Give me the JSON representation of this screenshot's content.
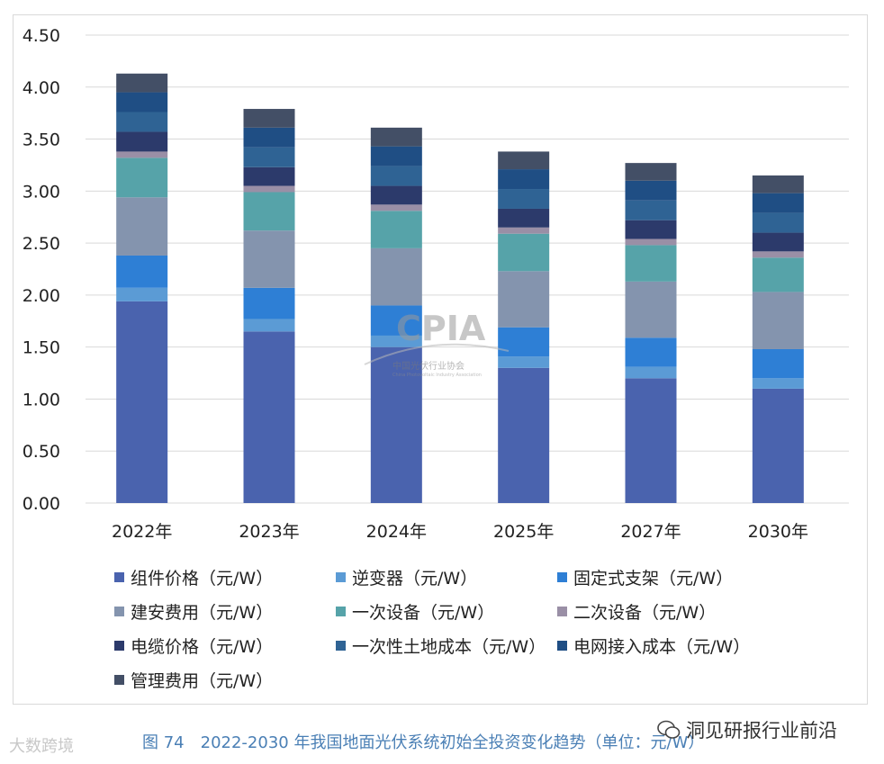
{
  "chart_data": {
    "type": "stacked-bar",
    "categories": [
      "2022年",
      "2023年",
      "2024年",
      "2025年",
      "2027年",
      "2030年"
    ],
    "ylim": [
      0,
      4.5
    ],
    "yticks": [
      "0.00",
      "0.50",
      "1.00",
      "1.50",
      "2.00",
      "2.50",
      "3.00",
      "3.50",
      "4.00",
      "4.50"
    ],
    "grid": true,
    "legend_position": "bottom",
    "series": [
      {
        "name": "组件价格（元/W）",
        "color": "#4A63AE",
        "values": [
          1.94,
          1.65,
          1.5,
          1.3,
          1.2,
          1.1
        ]
      },
      {
        "name": "逆变器（元/W）",
        "color": "#5B9BD5",
        "values": [
          0.13,
          0.12,
          0.11,
          0.11,
          0.11,
          0.1
        ]
      },
      {
        "name": "固定式支架（元/W）",
        "color": "#2E7FD5",
        "values": [
          0.31,
          0.3,
          0.29,
          0.28,
          0.28,
          0.28
        ]
      },
      {
        "name": "建安费用（元/W）",
        "color": "#8494AE",
        "values": [
          0.56,
          0.55,
          0.55,
          0.54,
          0.54,
          0.55
        ]
      },
      {
        "name": "一次设备（元/W）",
        "color": "#56A3A9",
        "values": [
          0.38,
          0.37,
          0.36,
          0.36,
          0.35,
          0.33
        ]
      },
      {
        "name": "二次设备（元/W）",
        "color": "#9A8FA6",
        "values": [
          0.06,
          0.06,
          0.06,
          0.06,
          0.06,
          0.06
        ]
      },
      {
        "name": "电缆价格（元/W）",
        "color": "#2C3A6B",
        "values": [
          0.19,
          0.18,
          0.18,
          0.18,
          0.18,
          0.18
        ]
      },
      {
        "name": "一次性土地成本（元/W）",
        "color": "#2F6394",
        "values": [
          0.19,
          0.19,
          0.19,
          0.19,
          0.19,
          0.19
        ]
      },
      {
        "name": "电网接入成本（元/W）",
        "color": "#1F4E84",
        "values": [
          0.19,
          0.19,
          0.19,
          0.19,
          0.19,
          0.19
        ]
      },
      {
        "name": "管理费用（元/W）",
        "color": "#434F66",
        "values": [
          0.18,
          0.18,
          0.18,
          0.17,
          0.17,
          0.17
        ]
      }
    ]
  },
  "caption": "图 74　2022-2030 年我国地面光伏系统初始全投资变化趋势（单位：元/W）",
  "watermark_logo": {
    "big": "CPIA",
    "cn": "中国光伏行业协会",
    "en": "China Photovoltaic Industry Association"
  },
  "watermark_left": "大数跨境",
  "watermark_right": "洞见研报行业前沿"
}
